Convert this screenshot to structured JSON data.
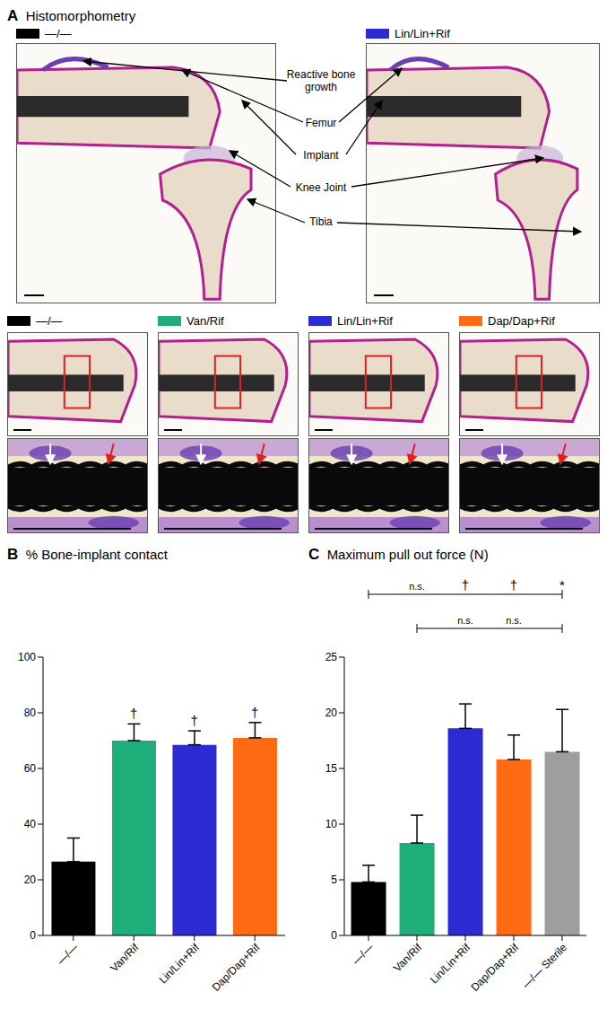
{
  "panel_a": {
    "label": "A",
    "title": "Histomorphometry",
    "overview": {
      "legend": [
        {
          "name": "—/—",
          "color": "#000000"
        },
        {
          "name": "Lin/Lin+Rif",
          "color": "#2b2bd1"
        }
      ],
      "annotations": [
        "Reactive bone growth",
        "Femur",
        "Implant",
        "Knee Joint",
        "Tibia"
      ]
    },
    "detail": {
      "legend": [
        {
          "name": "—/—",
          "color": "#000000"
        },
        {
          "name": "Van/Rif",
          "color": "#1fae7a"
        },
        {
          "name": "Lin/Lin+Rif",
          "color": "#2b2bd1"
        },
        {
          "name": "Dap/Dap+Rif",
          "color": "#ff6a13"
        }
      ]
    }
  },
  "chart_data": [
    {
      "label": "B",
      "type": "bar",
      "title": "% Bone-implant contact",
      "categories": [
        "—/—",
        "Van/Rif",
        "Lin/Lin+Rif",
        "Dap/Dap+Rif"
      ],
      "values": [
        26.5,
        70,
        68.5,
        71
      ],
      "error": [
        8.5,
        6,
        5,
        5.5
      ],
      "colors": [
        "#000000",
        "#1fae7a",
        "#2b2bd1",
        "#ff6a13"
      ],
      "ylim": [
        0,
        100
      ],
      "yticks": [
        0,
        20,
        40,
        60,
        80,
        100
      ],
      "annotations": [
        null,
        "†",
        "†",
        "†"
      ]
    },
    {
      "label": "C",
      "type": "bar",
      "title": "Maximum pull out force (N)",
      "categories": [
        "—/—",
        "Van/Rif",
        "Lin/Lin+Rif",
        "Dap/Dap+Rif",
        "—/— Sterile"
      ],
      "values": [
        4.8,
        8.3,
        18.6,
        15.8,
        16.5
      ],
      "error": [
        1.5,
        2.5,
        2.2,
        2.2,
        3.8
      ],
      "colors": [
        "#000000",
        "#1fae7a",
        "#2b2bd1",
        "#ff6a13",
        "#9e9e9e"
      ],
      "ylim": [
        0,
        25
      ],
      "yticks": [
        0,
        5,
        10,
        15,
        20,
        25
      ],
      "significance": [
        {
          "from": 0,
          "to": 4,
          "labels": [
            null,
            "n.s.",
            "†",
            "†",
            "*"
          ]
        },
        {
          "from": 1,
          "to": 4,
          "labels": [
            null,
            null,
            "n.s.",
            "n.s.",
            null
          ]
        }
      ]
    }
  ]
}
